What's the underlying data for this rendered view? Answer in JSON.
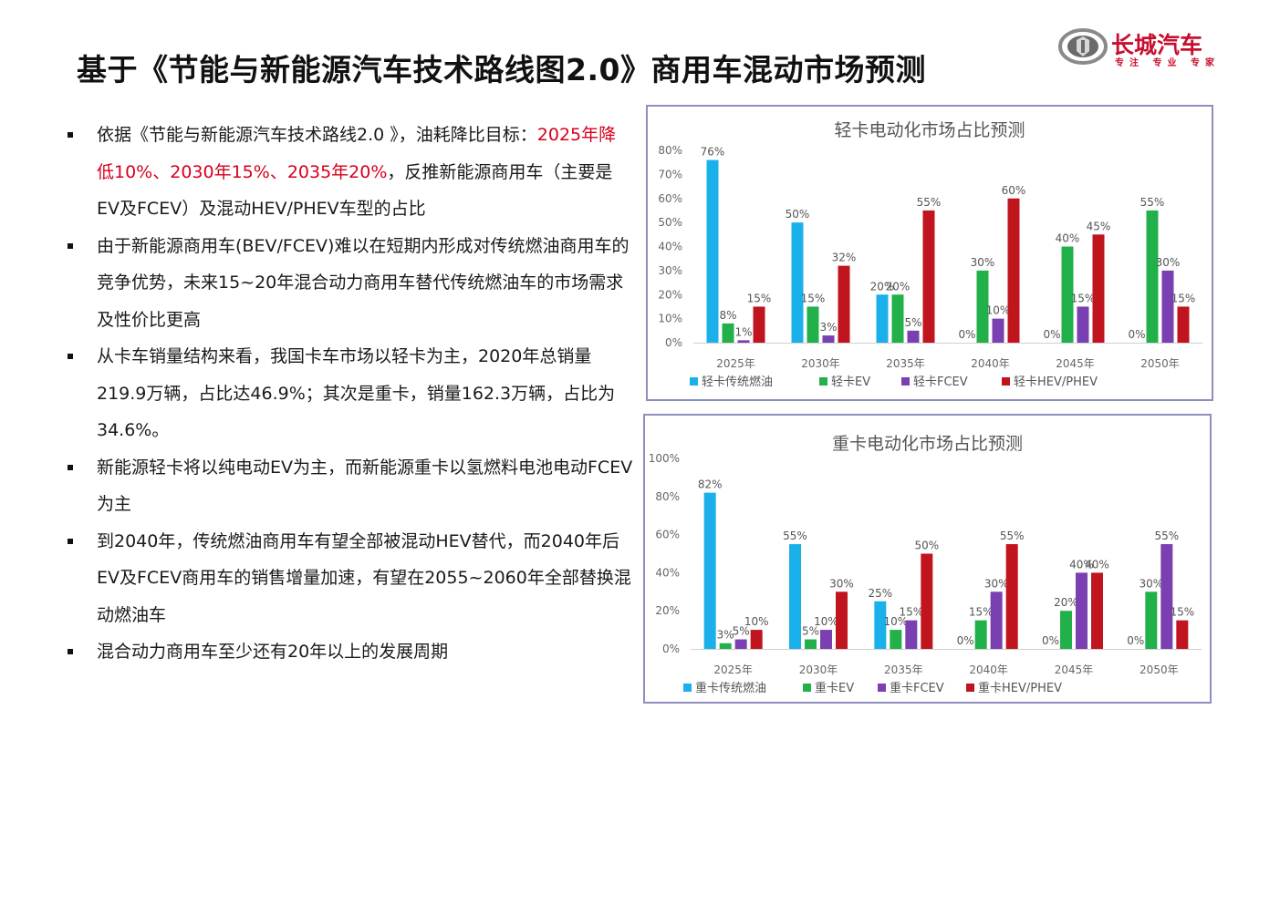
{
  "title": "基于《节能与新能源汽车技术路线图2.0》商用车混动市场预测",
  "logo": {
    "text": "长城汽车",
    "sub": "专注 专业 专家"
  },
  "bullets": [
    {
      "parts": [
        {
          "text": "依据《节能与新能源汽车技术路线2.0 》，油耗降比目标：",
          "red": false
        },
        {
          "text": "2025年降低10%、2030年15%、2035年20%",
          "red": true
        },
        {
          "text": "，反推新能源商用车（主要是EV及FCEV）及混动HEV/PHEV车型的占比",
          "red": false
        }
      ]
    },
    {
      "parts": [
        {
          "text": "由于新能源商用车(BEV/FCEV)难以在短期内形成对传统燃油商用车的竞争优势，未来15~20年混合动力商用车替代传统燃油车的市场需求及性价比更高",
          "red": false
        }
      ]
    },
    {
      "parts": [
        {
          "text": "从卡车销量结构来看，我国卡车市场以轻卡为主，2020年总销量219.9万辆，占比达46.9%；其次是重卡，销量162.3万辆，占比为34.6%。",
          "red": false
        }
      ]
    },
    {
      "parts": [
        {
          "text": "新能源轻卡将以纯电动EV为主，而新能源重卡以氢燃料电池电动FCEV为主",
          "red": false
        }
      ]
    },
    {
      "parts": [
        {
          "text": "到2040年，传统燃油商用车有望全部被混动HEV替代，而2040年后EV及FCEV商用车的销售增量加速，有望在2055~2060年全部替换混动燃油车",
          "red": false
        }
      ]
    },
    {
      "parts": [
        {
          "text": "混合动力商用车至少还有20年以上的发展周期",
          "red": false
        }
      ]
    }
  ],
  "colors": {
    "fuel": "#1ab0ea",
    "ev": "#22b04b",
    "fcev": "#7a3fb0",
    "hev": "#c0141e"
  },
  "chart_data": [
    {
      "type": "bar",
      "title": "轻卡电动化市场占比预测",
      "categories": [
        "2025年",
        "2030年",
        "2035年",
        "2040年",
        "2045年",
        "2050年"
      ],
      "yticks": [
        "0%",
        "10%",
        "20%",
        "30%",
        "40%",
        "50%",
        "60%",
        "70%",
        "80%"
      ],
      "ylim": [
        0,
        80
      ],
      "series": [
        {
          "name": "轻卡传统燃油",
          "key": "fuel",
          "values": [
            76,
            50,
            20,
            0,
            0,
            0
          ],
          "labels": [
            "76%",
            "50%",
            "20%",
            "0%",
            "0%",
            "0%"
          ]
        },
        {
          "name": "轻卡EV",
          "key": "ev",
          "values": [
            8,
            15,
            20,
            30,
            40,
            55
          ],
          "labels": [
            "8%",
            "15%",
            "20%",
            "30%",
            "40%",
            "55%"
          ]
        },
        {
          "name": "轻卡FCEV",
          "key": "fcev",
          "values": [
            1,
            3,
            5,
            10,
            15,
            30
          ],
          "labels": [
            "1%",
            "3%",
            "5%",
            "10%",
            "15%",
            "30%"
          ]
        },
        {
          "name": "轻卡HEV/PHEV",
          "key": "hev",
          "values": [
            15,
            32,
            55,
            60,
            45,
            15
          ],
          "labels": [
            "15%",
            "32%",
            "55%",
            "60%",
            "45%",
            "15%"
          ]
        }
      ],
      "legend": "bottom"
    },
    {
      "type": "bar",
      "title": "重卡电动化市场占比预测",
      "categories": [
        "2025年",
        "2030年",
        "2035年",
        "2040年",
        "2045年",
        "2050年"
      ],
      "yticks": [
        "0%",
        "20%",
        "40%",
        "60%",
        "80%",
        "100%"
      ],
      "ylim": [
        0,
        100
      ],
      "series": [
        {
          "name": "重卡传统燃油",
          "key": "fuel",
          "values": [
            82,
            55,
            25,
            0,
            0,
            0
          ],
          "labels": [
            "82%",
            "55%",
            "25%",
            "0%",
            "0%",
            "0%"
          ]
        },
        {
          "name": "重卡EV",
          "key": "ev",
          "values": [
            3,
            5,
            10,
            15,
            20,
            30
          ],
          "labels": [
            "3%",
            "5%",
            "10%",
            "15%",
            "20%",
            "30%"
          ]
        },
        {
          "name": "重卡FCEV",
          "key": "fcev",
          "values": [
            5,
            10,
            15,
            30,
            40,
            55
          ],
          "labels": [
            "5%",
            "10%",
            "15%",
            "30%",
            "40%",
            "55%"
          ]
        },
        {
          "name": "重卡HEV/PHEV",
          "key": "hev",
          "values": [
            10,
            30,
            50,
            55,
            40,
            15
          ],
          "labels": [
            "10%",
            "30%",
            "50%",
            "55%",
            "40%",
            "15%"
          ]
        }
      ],
      "legend": "bottom"
    }
  ]
}
